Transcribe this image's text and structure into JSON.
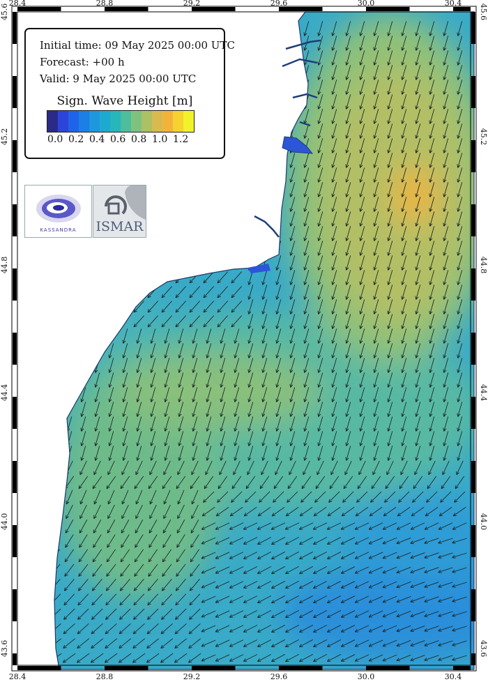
{
  "info": {
    "initial": "Initial time: 09 May 2025 00:00 UTC",
    "forecast": "Forecast: +00 h",
    "valid": "Valid:  9 May 2025 00:00 UTC"
  },
  "legend": {
    "title": "Sign. Wave Height [m]",
    "colors": [
      "#2b2a8a",
      "#2c45d8",
      "#1e64ea",
      "#1b7fe7",
      "#1d97de",
      "#1eaad0",
      "#26b6bb",
      "#4ebd9c",
      "#7ec27e",
      "#acc064",
      "#d8ba50",
      "#f3b33a",
      "#f6d230",
      "#f2f22a"
    ],
    "tick_labels": [
      "0.0",
      "0.2",
      "0.4",
      "0.6",
      "0.8",
      "1.0",
      "1.2"
    ]
  },
  "axes": {
    "lon_ticks": [
      "28.4",
      "28.8",
      "29.2",
      "29.6",
      "30.0",
      "30.4"
    ],
    "lat_ticks": [
      "45.6",
      "45.2",
      "44.8",
      "44.4",
      "44.0",
      "43.6"
    ]
  },
  "logos": {
    "kassandra": "KASSANDRA",
    "ismar": "ISMAR"
  }
}
